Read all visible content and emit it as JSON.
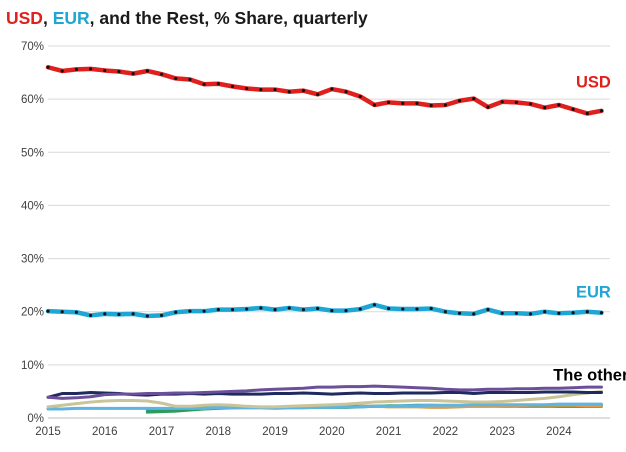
{
  "chart_data": {
    "type": "line",
    "title_parts": [
      {
        "text": "USD",
        "color": "#e0201c"
      },
      {
        "text": ", ",
        "color": "#1a1a1a"
      },
      {
        "text": "EUR",
        "color": "#1ea6d6"
      },
      {
        "text": ", and the Rest, % Share, quarterly",
        "color": "#1a1a1a"
      }
    ],
    "ylim": [
      0,
      70
    ],
    "y_ticks": [
      0,
      10,
      20,
      30,
      40,
      50,
      60,
      70
    ],
    "y_tick_suffix": "%",
    "xlim": [
      2015,
      2024.9
    ],
    "x_ticks": [
      "2015",
      "2016",
      "2017",
      "2018",
      "2019",
      "2020",
      "2021",
      "2022",
      "2023",
      "2024"
    ],
    "grid": "horizontal",
    "annotations": [
      {
        "text": "USD",
        "color": "#e0201c",
        "x": 2024.3,
        "y": 62.2
      },
      {
        "text": "EUR",
        "color": "#1ea6d6",
        "x": 2024.3,
        "y": 22.7
      },
      {
        "text": "The others",
        "color": "#000000",
        "x": 2023.9,
        "y": 7.1
      }
    ],
    "series": [
      {
        "name": "USD",
        "color": "#e0201c",
        "width": 4.5,
        "markers": true,
        "start": 2015.0,
        "values": [
          66.0,
          65.3,
          65.6,
          65.7,
          65.4,
          65.2,
          64.8,
          65.3,
          64.7,
          63.9,
          63.7,
          62.8,
          62.9,
          62.4,
          62.0,
          61.8,
          61.8,
          61.4,
          61.6,
          60.9,
          61.9,
          61.4,
          60.5,
          58.9,
          59.4,
          59.2,
          59.2,
          58.8,
          58.9,
          59.7,
          60.1,
          58.5,
          59.5,
          59.4,
          59.1,
          58.4,
          58.9,
          58.1,
          57.3,
          57.8
        ]
      },
      {
        "name": "EUR",
        "color": "#1ea6d6",
        "width": 4.5,
        "markers": true,
        "start": 2015.0,
        "values": [
          20.1,
          20.0,
          19.9,
          19.3,
          19.6,
          19.5,
          19.6,
          19.2,
          19.3,
          19.9,
          20.1,
          20.1,
          20.4,
          20.4,
          20.5,
          20.7,
          20.4,
          20.7,
          20.4,
          20.6,
          20.2,
          20.2,
          20.5,
          21.3,
          20.6,
          20.5,
          20.5,
          20.6,
          20.0,
          19.7,
          19.6,
          20.4,
          19.7,
          19.7,
          19.6,
          20.0,
          19.7,
          19.8,
          20.0,
          19.8
        ]
      },
      {
        "name": "Other (purple)",
        "color": "#6c4f9a",
        "width": 3,
        "markers": false,
        "start": 2015.0,
        "values": [
          3.9,
          3.7,
          3.8,
          4.0,
          4.4,
          4.5,
          4.5,
          4.6,
          4.6,
          4.7,
          4.7,
          4.8,
          4.9,
          5.0,
          5.1,
          5.3,
          5.4,
          5.5,
          5.6,
          5.8,
          5.8,
          5.9,
          5.9,
          6.0,
          5.9,
          5.8,
          5.7,
          5.6,
          5.4,
          5.3,
          5.3,
          5.4,
          5.4,
          5.5,
          5.5,
          5.6,
          5.6,
          5.7,
          5.8,
          5.8
        ]
      },
      {
        "name": "Other (navy)",
        "color": "#1f2a5e",
        "width": 3,
        "markers": false,
        "start": 2015.0,
        "values": [
          3.9,
          4.6,
          4.6,
          4.8,
          4.7,
          4.6,
          4.4,
          4.3,
          4.5,
          4.5,
          4.6,
          4.5,
          4.6,
          4.5,
          4.5,
          4.5,
          4.6,
          4.6,
          4.7,
          4.6,
          4.5,
          4.6,
          4.7,
          4.6,
          4.6,
          4.7,
          4.7,
          4.7,
          4.8,
          4.8,
          4.6,
          4.8,
          4.8,
          4.8,
          4.8,
          4.9,
          4.9,
          4.9,
          4.8,
          4.8
        ]
      },
      {
        "name": "Other (tan)",
        "color": "#c9c49a",
        "width": 3,
        "markers": false,
        "start": 2015.0,
        "values": [
          2.1,
          2.4,
          2.7,
          3.0,
          3.2,
          3.3,
          3.3,
          3.2,
          2.8,
          2.2,
          2.2,
          2.4,
          2.5,
          2.4,
          2.2,
          2.1,
          2.1,
          2.2,
          2.3,
          2.4,
          2.5,
          2.6,
          2.8,
          3.0,
          3.1,
          3.2,
          3.3,
          3.3,
          3.2,
          3.1,
          3.0,
          3.0,
          3.1,
          3.3,
          3.5,
          3.7,
          4.0,
          4.4,
          4.7,
          5.0
        ]
      },
      {
        "name": "Other (light blue)",
        "color": "#5fb4e0",
        "width": 3,
        "markers": false,
        "start": 2015.0,
        "values": [
          1.7,
          1.7,
          1.8,
          1.8,
          1.8,
          1.8,
          1.8,
          1.8,
          1.8,
          1.8,
          1.8,
          1.8,
          1.9,
          1.9,
          1.9,
          1.9,
          1.8,
          1.9,
          1.9,
          2.0,
          2.0,
          2.1,
          2.1,
          2.2,
          2.2,
          2.3,
          2.3,
          2.4,
          2.4,
          2.4,
          2.5,
          2.5,
          2.5,
          2.5,
          2.5,
          2.5,
          2.6,
          2.6,
          2.6,
          2.6
        ]
      },
      {
        "name": "Other (orange)",
        "color": "#e39a48",
        "width": 3,
        "markers": false,
        "start": 2015.0,
        "values": [
          null,
          null,
          null,
          null,
          null,
          null,
          null,
          null,
          null,
          null,
          null,
          null,
          null,
          null,
          null,
          null,
          null,
          null,
          null,
          null,
          null,
          null,
          2.2,
          2.2,
          2.1,
          2.1,
          2.1,
          2.0,
          2.0,
          2.1,
          2.2,
          2.2,
          2.3,
          2.3,
          2.4,
          2.4,
          2.4,
          2.4,
          2.3,
          2.3
        ]
      },
      {
        "name": "Other (green)",
        "color": "#2e9a5c",
        "width": 3,
        "markers": false,
        "start": 2016.75,
        "values": [
          1.1,
          1.2,
          1.3,
          1.5,
          1.7,
          1.8,
          1.9,
          2.0,
          2.0,
          2.0,
          2.1,
          2.1,
          2.0,
          2.0,
          2.0,
          2.1,
          2.2,
          2.3,
          2.3,
          2.4,
          2.4,
          2.3,
          2.3,
          2.3,
          2.3,
          2.3,
          2.3,
          2.3,
          2.3,
          2.2,
          2.2,
          2.2,
          2.2
        ]
      },
      {
        "name": "Other (teal)",
        "color": "#1aa095",
        "width": 3,
        "markers": false,
        "start": 2016.75,
        "values": [
          1.5,
          1.6,
          1.7,
          1.8,
          1.9,
          2.0,
          2.0,
          2.0,
          2.0,
          2.0,
          2.0,
          2.1,
          2.1,
          2.2,
          2.2,
          2.2,
          2.2,
          2.2,
          2.2,
          2.2,
          2.2,
          2.2,
          2.2,
          2.2,
          2.2,
          2.2,
          2.2,
          2.2,
          2.2,
          2.2,
          2.2,
          2.2,
          2.2
        ]
      }
    ]
  }
}
